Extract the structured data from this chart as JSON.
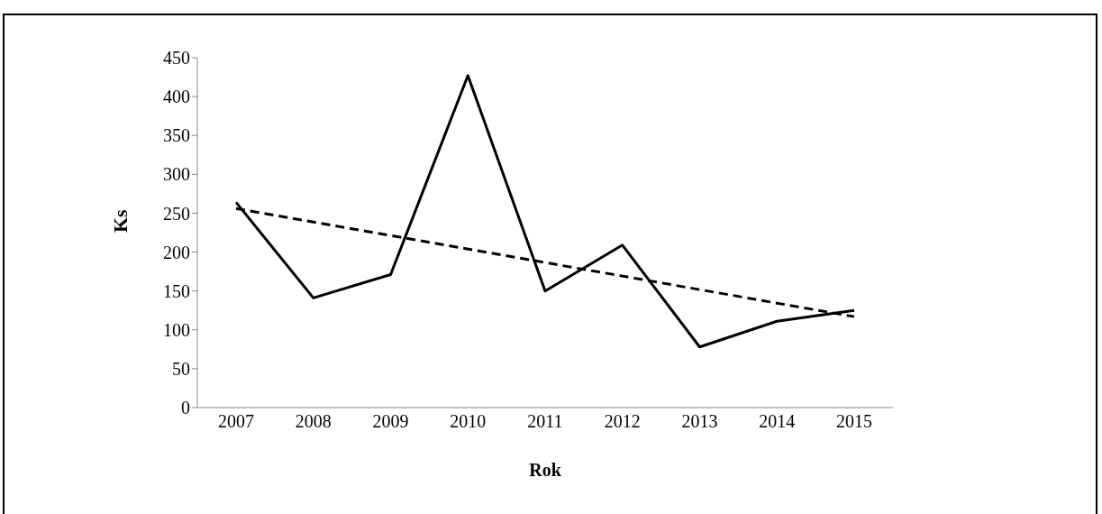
{
  "chart_data": {
    "type": "line",
    "xlabel": "Rok",
    "ylabel": "Ks",
    "categories": [
      "2007",
      "2008",
      "2009",
      "2010",
      "2011",
      "2012",
      "2013",
      "2014",
      "2015"
    ],
    "series": [
      {
        "color": "#000000",
        "line_style": "solid",
        "values": [
          264,
          141,
          171,
          427,
          150,
          209,
          78,
          111,
          125
        ]
      },
      {
        "color": "#000000",
        "line_style": "dashed",
        "values": [
          256,
          null,
          null,
          null,
          null,
          null,
          null,
          null,
          117
        ]
      }
    ],
    "ylim": [
      0,
      450
    ],
    "yticks": [
      0,
      50,
      100,
      150,
      200,
      250,
      300,
      350,
      400,
      450
    ],
    "grid": false,
    "legend": false,
    "marker": "none"
  }
}
